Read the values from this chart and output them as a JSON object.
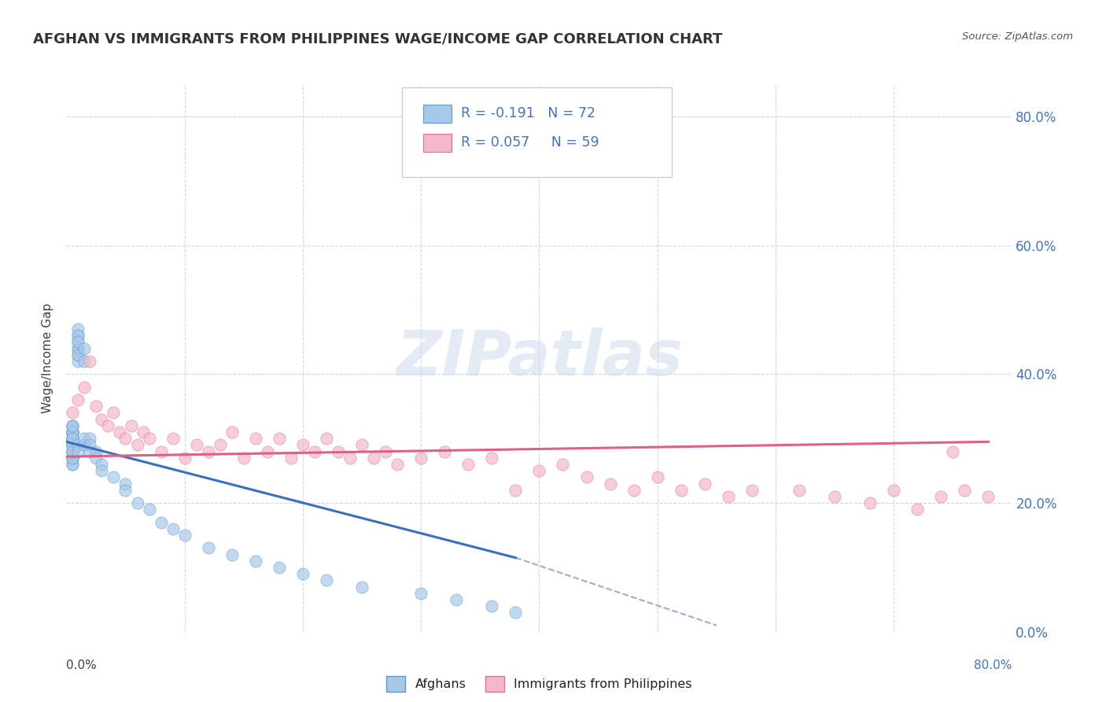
{
  "title": "AFGHAN VS IMMIGRANTS FROM PHILIPPINES WAGE/INCOME GAP CORRELATION CHART",
  "source": "Source: ZipAtlas.com",
  "ylabel": "Wage/Income Gap",
  "right_yticklabels": [
    "0.0%",
    "20.0%",
    "40.0%",
    "60.0%",
    "80.0%"
  ],
  "right_ytick_vals": [
    0.0,
    0.2,
    0.4,
    0.6,
    0.8
  ],
  "color_afghan": "#a8c8e8",
  "color_afghan_edge": "#5b9bd5",
  "color_phil": "#f4b8cc",
  "color_phil_edge": "#e07090",
  "color_line_afghan": "#3a6fbe",
  "color_line_phil": "#e06080",
  "color_grid": "#c8d8e8",
  "watermark": "ZIPatlas",
  "xlim": [
    0.0,
    0.8
  ],
  "ylim": [
    0.0,
    0.85
  ],
  "afghans_x": [
    0.005,
    0.005,
    0.005,
    0.005,
    0.005,
    0.005,
    0.005,
    0.005,
    0.005,
    0.005,
    0.005,
    0.005,
    0.005,
    0.005,
    0.005,
    0.005,
    0.005,
    0.005,
    0.005,
    0.005,
    0.005,
    0.005,
    0.005,
    0.005,
    0.005,
    0.005,
    0.005,
    0.005,
    0.005,
    0.005,
    0.01,
    0.01,
    0.01,
    0.01,
    0.01,
    0.01,
    0.01,
    0.01,
    0.01,
    0.01,
    0.01,
    0.01,
    0.015,
    0.015,
    0.015,
    0.015,
    0.02,
    0.02,
    0.02,
    0.025,
    0.025,
    0.03,
    0.03,
    0.04,
    0.05,
    0.05,
    0.06,
    0.07,
    0.08,
    0.09,
    0.1,
    0.12,
    0.14,
    0.16,
    0.18,
    0.2,
    0.22,
    0.25,
    0.3,
    0.33,
    0.36,
    0.38
  ],
  "afghans_y": [
    0.29,
    0.3,
    0.31,
    0.28,
    0.27,
    0.32,
    0.26,
    0.3,
    0.31,
    0.29,
    0.28,
    0.27,
    0.3,
    0.32,
    0.28,
    0.29,
    0.31,
    0.27,
    0.26,
    0.3,
    0.28,
    0.31,
    0.29,
    0.27,
    0.3,
    0.31,
    0.29,
    0.28,
    0.3,
    0.32,
    0.44,
    0.46,
    0.43,
    0.45,
    0.42,
    0.47,
    0.44,
    0.46,
    0.43,
    0.45,
    0.29,
    0.28,
    0.42,
    0.44,
    0.29,
    0.3,
    0.28,
    0.3,
    0.29,
    0.28,
    0.27,
    0.26,
    0.25,
    0.24,
    0.23,
    0.22,
    0.2,
    0.19,
    0.17,
    0.16,
    0.15,
    0.13,
    0.12,
    0.11,
    0.1,
    0.09,
    0.08,
    0.07,
    0.06,
    0.05,
    0.04,
    0.03
  ],
  "phil_x": [
    0.005,
    0.01,
    0.015,
    0.02,
    0.025,
    0.03,
    0.035,
    0.04,
    0.045,
    0.05,
    0.055,
    0.06,
    0.065,
    0.07,
    0.08,
    0.09,
    0.1,
    0.11,
    0.12,
    0.13,
    0.14,
    0.15,
    0.16,
    0.17,
    0.18,
    0.19,
    0.2,
    0.21,
    0.22,
    0.23,
    0.24,
    0.25,
    0.26,
    0.27,
    0.28,
    0.3,
    0.32,
    0.34,
    0.36,
    0.38,
    0.4,
    0.42,
    0.44,
    0.46,
    0.48,
    0.5,
    0.52,
    0.54,
    0.56,
    0.58,
    0.62,
    0.65,
    0.68,
    0.7,
    0.72,
    0.74,
    0.75,
    0.76,
    0.78
  ],
  "phil_y": [
    0.34,
    0.36,
    0.38,
    0.42,
    0.35,
    0.33,
    0.32,
    0.34,
    0.31,
    0.3,
    0.32,
    0.29,
    0.31,
    0.3,
    0.28,
    0.3,
    0.27,
    0.29,
    0.28,
    0.29,
    0.31,
    0.27,
    0.3,
    0.28,
    0.3,
    0.27,
    0.29,
    0.28,
    0.3,
    0.28,
    0.27,
    0.29,
    0.27,
    0.28,
    0.26,
    0.27,
    0.28,
    0.26,
    0.27,
    0.22,
    0.25,
    0.26,
    0.24,
    0.23,
    0.22,
    0.24,
    0.22,
    0.23,
    0.21,
    0.22,
    0.22,
    0.21,
    0.2,
    0.22,
    0.19,
    0.21,
    0.28,
    0.22,
    0.21
  ],
  "line_afg_x0": 0.0,
  "line_afg_y0": 0.295,
  "line_afg_x1": 0.38,
  "line_afg_y1": 0.115,
  "line_afg_dash_x0": 0.38,
  "line_afg_dash_y0": 0.115,
  "line_afg_dash_x1": 0.55,
  "line_afg_dash_y1": 0.01,
  "line_phil_x0": 0.0,
  "line_phil_y0": 0.272,
  "line_phil_x1": 0.78,
  "line_phil_y1": 0.295
}
